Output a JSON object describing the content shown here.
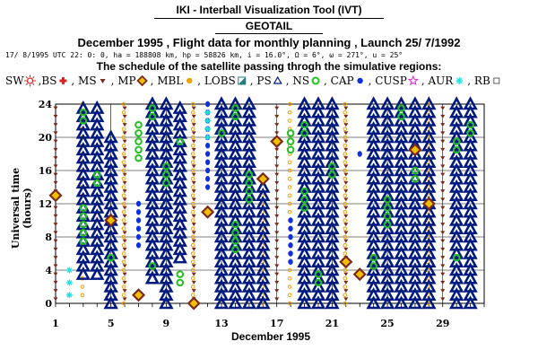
{
  "header": {
    "tool": "IKI - Interball Visualization Tool (IVT)",
    "satellite": "GEOTAIL",
    "flight": "December 1995 ,  Flight data for monthly planning ,   Launch 25/ 7/1992",
    "orbit": "17/ 8/1995 UTC 22: 0: 0, ha = 188808 km, hp =  58826 km, i = 16.0°, Ω =  6°, ω = 271°, u =  25°",
    "schedule": "The schedule of the satellite passing throgh the simulative regions:"
  },
  "legend": [
    {
      "label": "SW",
      "icon": "sun-icon",
      "color": "#e02020"
    },
    {
      "label": ",BS",
      "icon": "cross-icon",
      "color": "#e02020"
    },
    {
      "label": ", MS",
      "icon": "triangle-down-icon",
      "color": "#7a2a1a"
    },
    {
      "label": ", MP",
      "icon": "diamond-icon",
      "color": "#7a2a1a"
    },
    {
      "label": ", MBL",
      "icon": "dot-icon",
      "color": "#f0a000"
    },
    {
      "label": ", LOBS",
      "icon": "half-square-icon",
      "color": "#208080"
    },
    {
      "label": ", PS",
      "icon": "triangle-up-icon",
      "color": "#001a80"
    },
    {
      "label": ", NS",
      "icon": "ring-icon",
      "color": "#20c020"
    },
    {
      "label": ", CAP",
      "icon": "dot-icon",
      "color": "#1030e0"
    },
    {
      "label": ", CUSP",
      "icon": "star-icon",
      "color": "#e020e0"
    },
    {
      "label": ", AUR",
      "icon": "asterisk-icon",
      "color": "#20e0e0"
    },
    {
      "label": ", RB",
      "icon": "square-icon",
      "color": "#606060"
    }
  ],
  "chart_data": {
    "type": "scatter",
    "xlabel": "December 1995",
    "ylabel": "Universal time (hours)",
    "xlim": [
      1,
      32
    ],
    "ylim": [
      0,
      24
    ],
    "x_ticks": [
      "1",
      "5",
      "9",
      "13",
      "17",
      "21",
      "25",
      "29"
    ],
    "y_ticks": [
      "0",
      "4",
      "8",
      "12",
      "16",
      "20",
      "24"
    ],
    "grid": true,
    "days": [
      {
        "day": 1,
        "ps": [],
        "ms": [
          0.5,
          23.5
        ],
        "cap": [],
        "ns": [],
        "mp": [
          13
        ],
        "mbl": [],
        "aur": [],
        "bs": []
      },
      {
        "day": 2,
        "ps": [],
        "ms": [],
        "cap": [],
        "ns": [],
        "mp": [],
        "mbl": [],
        "aur": [
          1,
          2.5,
          4
        ],
        "bs": []
      },
      {
        "day": 3,
        "ps": [
          3.5,
          24
        ],
        "ms": [],
        "cap": [],
        "ns": [
          7.5,
          8.5,
          9.5,
          10.5,
          11.5,
          22,
          23
        ],
        "mp": [],
        "mbl": [
          1,
          2,
          3,
          11,
          12,
          13,
          14,
          15,
          16,
          17,
          18,
          19,
          20,
          21,
          22,
          23,
          24
        ],
        "aur": [],
        "bs": []
      },
      {
        "day": 4,
        "ps": [
          3.5,
          24
        ],
        "ms": [],
        "cap": [],
        "ns": [
          14.5,
          15.5
        ],
        "mp": [],
        "mbl": [],
        "aur": [],
        "bs": []
      },
      {
        "day": 5,
        "ps": [
          0,
          20
        ],
        "ms": [],
        "cap": [],
        "ns": [
          5.5
        ],
        "mp": [
          10
        ],
        "mbl": [],
        "aur": [],
        "bs": []
      },
      {
        "day": 6,
        "ps": [],
        "ms": [
          0.5,
          23.5
        ],
        "cap": [],
        "ns": [],
        "mp": [],
        "mbl": [
          0,
          1,
          2,
          3,
          4,
          5,
          6,
          7,
          8,
          9,
          10,
          11,
          12,
          13,
          14,
          15,
          16,
          17,
          18,
          19,
          20,
          21,
          22,
          23,
          24
        ],
        "aur": [],
        "bs": []
      },
      {
        "day": 7,
        "ps": [],
        "ms": [],
        "cap": [
          7,
          8,
          9,
          10,
          11,
          12
        ],
        "ns": [
          17.5,
          18.5,
          19.5,
          20.5,
          21.5
        ],
        "mp": [
          1
        ],
        "mbl": [],
        "aur": [],
        "bs": []
      },
      {
        "day": 8,
        "ps": [
          3,
          24
        ],
        "ms": [],
        "cap": [],
        "ns": [
          4.5,
          22.5,
          23.5
        ],
        "mp": [],
        "mbl": [],
        "aur": [],
        "bs": []
      },
      {
        "day": 9,
        "ps": [
          0,
          24
        ],
        "ms": [],
        "cap": [],
        "ns": [
          14.5,
          15.5,
          16.5
        ],
        "mp": [],
        "mbl": [],
        "aur": [],
        "bs": []
      },
      {
        "day": 10,
        "ps": [
          5.5,
          24
        ],
        "ms": [],
        "cap": [],
        "ns": [
          2.5,
          3.5,
          19.5
        ],
        "mp": [],
        "mbl": [],
        "aur": [],
        "bs": []
      },
      {
        "day": 11,
        "ps": [],
        "ms": [
          0.5,
          23.5
        ],
        "cap": [],
        "ns": [],
        "mp": [
          0
        ],
        "mbl": [
          0,
          1,
          2,
          3,
          4,
          5,
          6,
          7,
          8,
          9,
          10,
          11,
          12,
          13,
          14,
          15,
          16,
          17,
          18,
          19,
          20,
          21,
          22,
          23,
          24
        ],
        "aur": [],
        "bs": []
      },
      {
        "day": 12,
        "ps": [],
        "ms": [],
        "cap": [
          14,
          15,
          16,
          17,
          18,
          19,
          20,
          21,
          22,
          23,
          24
        ],
        "ns": [],
        "mp": [
          11
        ],
        "mbl": [],
        "aur": [
          20,
          21,
          22,
          23
        ],
        "bs": []
      },
      {
        "day": 13,
        "ps": [
          0,
          24
        ],
        "ms": [],
        "cap": [],
        "ns": [
          20.5
        ],
        "mp": [],
        "mbl": [],
        "aur": [],
        "bs": []
      },
      {
        "day": 14,
        "ps": [
          0,
          24
        ],
        "ms": [],
        "cap": [],
        "ns": [
          6.5,
          7.5,
          8.5,
          9.5,
          22.5,
          23.5
        ],
        "mp": [],
        "mbl": [],
        "aur": [],
        "bs": []
      },
      {
        "day": 15,
        "ps": [
          0,
          24
        ],
        "ms": [],
        "cap": [],
        "ns": [
          12.5,
          13.5,
          14.5,
          15.5
        ],
        "mp": [],
        "mbl": [],
        "aur": [],
        "bs": []
      },
      {
        "day": 16,
        "ps": [
          0,
          14
        ],
        "ms": [],
        "cap": [],
        "ns": [],
        "mp": [
          15
        ],
        "mbl": [
          0,
          1,
          2,
          3,
          4,
          5,
          6,
          7,
          8,
          9,
          10,
          11,
          12,
          13
        ],
        "aur": [],
        "bs": []
      },
      {
        "day": 17,
        "ps": [],
        "ms": [
          0.5,
          23.5
        ],
        "cap": [],
        "ns": [],
        "mp": [
          19.5
        ],
        "mbl": [],
        "aur": [],
        "bs": []
      },
      {
        "day": 18,
        "ps": [],
        "ms": [],
        "cap": [
          5,
          6,
          7,
          8,
          9,
          10
        ],
        "ns": [
          18.5,
          19.5,
          20.5
        ],
        "mp": [],
        "mbl": [
          0,
          1,
          2,
          3,
          4,
          5,
          6,
          7,
          8,
          9,
          10,
          11,
          12,
          13,
          14,
          15,
          16,
          17,
          18,
          19,
          20,
          21,
          22,
          23,
          24
        ],
        "aur": [],
        "bs": []
      },
      {
        "day": 19,
        "ps": [
          0,
          24
        ],
        "ms": [],
        "cap": [],
        "ns": [
          11.5,
          12.5,
          13.5,
          20.5,
          21.5
        ],
        "mp": [],
        "mbl": [],
        "aur": [],
        "bs": []
      },
      {
        "day": 20,
        "ps": [
          0,
          24
        ],
        "ms": [],
        "cap": [],
        "ns": [
          2.5,
          3.5
        ],
        "mp": [],
        "mbl": [],
        "aur": [],
        "bs": []
      },
      {
        "day": 21,
        "ps": [
          0,
          24
        ],
        "ms": [],
        "cap": [],
        "ns": [
          15.5,
          16.5
        ],
        "mp": [],
        "mbl": [],
        "aur": [],
        "bs": []
      },
      {
        "day": 22,
        "ps": [],
        "ms": [
          0.5,
          23.5
        ],
        "cap": [],
        "ns": [],
        "mp": [
          5
        ],
        "mbl": [
          0,
          1,
          2,
          3,
          4,
          5,
          6,
          7,
          8,
          9,
          10,
          11,
          12,
          13,
          14,
          15,
          16,
          17,
          18,
          19,
          20,
          21,
          22,
          23,
          24
        ],
        "aur": [],
        "bs": []
      },
      {
        "day": 23,
        "ps": [],
        "ms": [],
        "cap": [
          18
        ],
        "ns": [],
        "mp": [
          3.5
        ],
        "mbl": [],
        "aur": [],
        "bs": []
      },
      {
        "day": 24,
        "ps": [
          0,
          24
        ],
        "ms": [],
        "cap": [],
        "ns": [
          4.5,
          5.5
        ],
        "mp": [],
        "mbl": [],
        "aur": [],
        "bs": []
      },
      {
        "day": 25,
        "ps": [
          0,
          24
        ],
        "ms": [],
        "cap": [],
        "ns": [
          9.5,
          10.5,
          11.5,
          12.5
        ],
        "mp": [],
        "mbl": [],
        "aur": [],
        "bs": []
      },
      {
        "day": 26,
        "ps": [
          0,
          24
        ],
        "ms": [],
        "cap": [],
        "ns": [
          22.5,
          23.5
        ],
        "mp": [],
        "mbl": [],
        "aur": [],
        "bs": []
      },
      {
        "day": 27,
        "ps": [
          0,
          24
        ],
        "ms": [],
        "cap": [],
        "ns": [
          15,
          16
        ],
        "mp": [
          18.5
        ],
        "mbl": [],
        "aur": [],
        "bs": []
      },
      {
        "day": 28,
        "ps": [
          0,
          24
        ],
        "ms": [],
        "cap": [],
        "ns": [],
        "mp": [
          12
        ],
        "mbl": [
          0,
          1,
          2,
          3,
          4,
          5,
          6,
          7,
          8,
          9,
          10,
          11,
          12,
          13,
          14,
          15,
          16,
          17,
          18,
          19,
          20,
          21,
          22,
          23,
          24
        ],
        "aur": [],
        "bs": []
      },
      {
        "day": 29,
        "ps": [],
        "ms": [
          0.5,
          23.5
        ],
        "cap": [],
        "ns": [],
        "mp": [],
        "mbl": [],
        "aur": [],
        "bs": []
      },
      {
        "day": 30,
        "ps": [
          0,
          24
        ],
        "ms": [],
        "cap": [],
        "ns": [
          5.5,
          18.5,
          19.5
        ],
        "mp": [],
        "mbl": [],
        "aur": [],
        "bs": []
      },
      {
        "day": 31,
        "ps": [
          0,
          24
        ],
        "ms": [],
        "cap": [],
        "ns": [
          20.5,
          21.5
        ],
        "mp": [],
        "mbl": [],
        "aur": [],
        "bs": []
      }
    ]
  }
}
